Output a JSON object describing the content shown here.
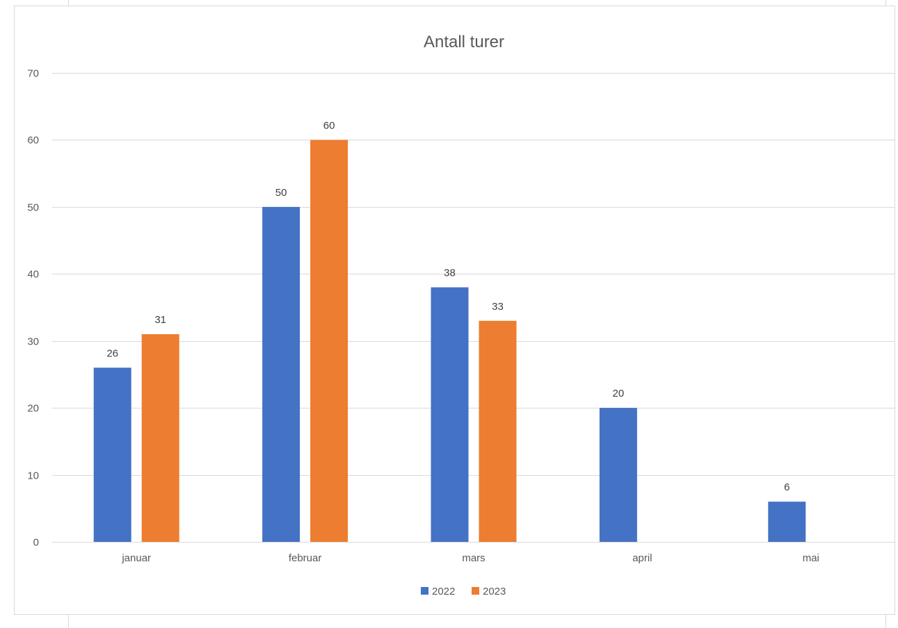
{
  "chart_data": {
    "type": "bar",
    "title": "Antall turer",
    "xlabel": "",
    "ylabel": "",
    "categories": [
      "januar",
      "februar",
      "mars",
      "april",
      "mai"
    ],
    "series": [
      {
        "name": "2022",
        "color": "#4472C4",
        "values": [
          26,
          50,
          38,
          20,
          6
        ]
      },
      {
        "name": "2023",
        "color": "#ED7D31",
        "values": [
          31,
          60,
          33,
          null,
          null
        ]
      }
    ],
    "ylim": [
      0,
      70
    ],
    "yticks": [
      0,
      10,
      20,
      30,
      40,
      50,
      60,
      70
    ],
    "grid": true,
    "legend_position": "bottom",
    "data_labels": true
  }
}
